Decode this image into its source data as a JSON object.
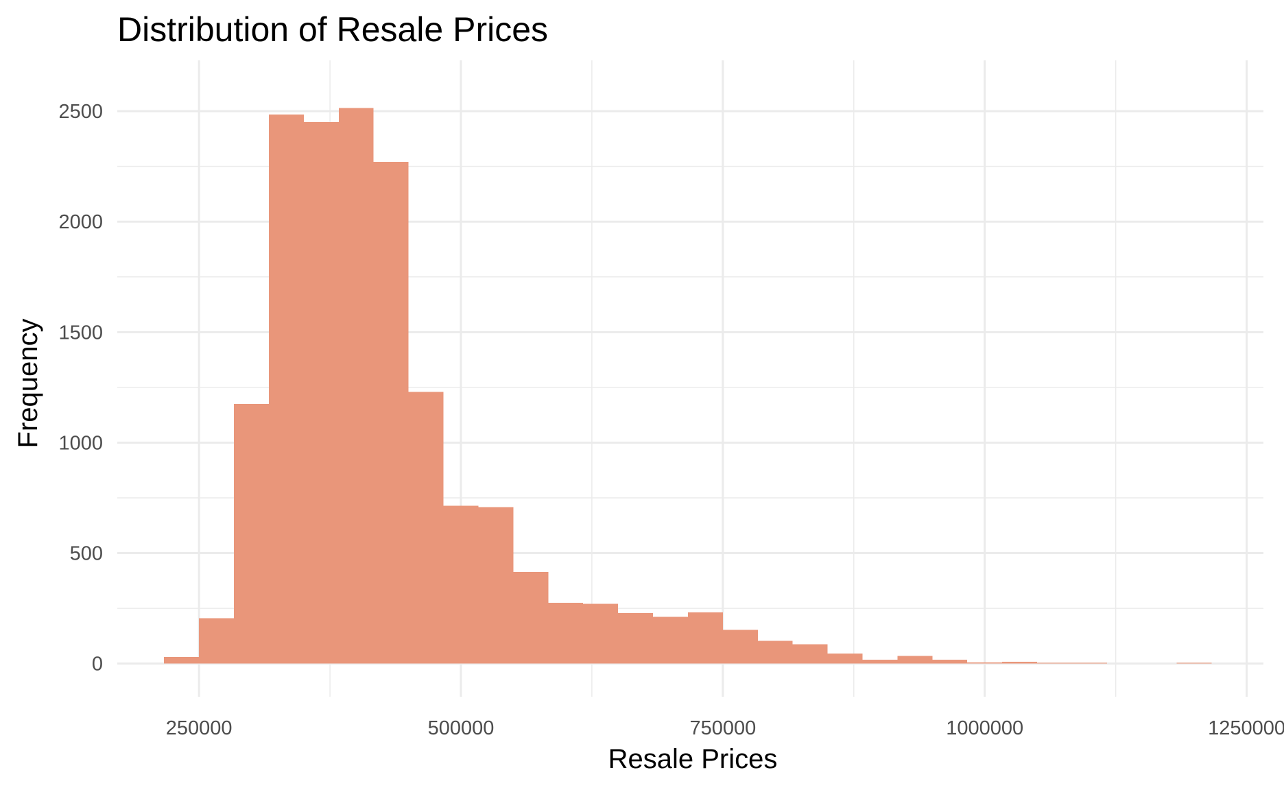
{
  "chart_data": {
    "type": "bar",
    "title": "Distribution of Resale Prices",
    "xlabel": "Resale Prices",
    "ylabel": "Frequency",
    "bar_color": "#E9967A",
    "grid": true,
    "xlim": [
      172000,
      1266000
    ],
    "ylim": [
      -150,
      2730
    ],
    "x_ticks": [
      250000,
      500000,
      750000,
      1000000,
      1250000
    ],
    "x_tick_labels": [
      "250000",
      "500000",
      "750000",
      "1000000",
      "1250000"
    ],
    "y_ticks": [
      0,
      500,
      1000,
      1500,
      2000,
      2500
    ],
    "y_tick_labels": [
      "0",
      "500",
      "1000",
      "1500",
      "2000",
      "2500"
    ],
    "bin_width": 33333,
    "bins": [
      {
        "start": 216667,
        "end": 250000,
        "count": 30
      },
      {
        "start": 250000,
        "end": 283333,
        "count": 205
      },
      {
        "start": 283333,
        "end": 316667,
        "count": 1175
      },
      {
        "start": 316667,
        "end": 350000,
        "count": 2485
      },
      {
        "start": 350000,
        "end": 383333,
        "count": 2450
      },
      {
        "start": 383333,
        "end": 416667,
        "count": 2515
      },
      {
        "start": 416667,
        "end": 450000,
        "count": 2270
      },
      {
        "start": 450000,
        "end": 483333,
        "count": 1230
      },
      {
        "start": 483333,
        "end": 516667,
        "count": 715
      },
      {
        "start": 516667,
        "end": 550000,
        "count": 708
      },
      {
        "start": 550000,
        "end": 583333,
        "count": 415
      },
      {
        "start": 583333,
        "end": 616667,
        "count": 275
      },
      {
        "start": 616667,
        "end": 650000,
        "count": 270
      },
      {
        "start": 650000,
        "end": 683333,
        "count": 228
      },
      {
        "start": 683333,
        "end": 716667,
        "count": 212
      },
      {
        "start": 716667,
        "end": 750000,
        "count": 232
      },
      {
        "start": 750000,
        "end": 783333,
        "count": 152
      },
      {
        "start": 783333,
        "end": 816667,
        "count": 103
      },
      {
        "start": 816667,
        "end": 850000,
        "count": 88
      },
      {
        "start": 850000,
        "end": 883333,
        "count": 45
      },
      {
        "start": 883333,
        "end": 916667,
        "count": 18
      },
      {
        "start": 916667,
        "end": 950000,
        "count": 35
      },
      {
        "start": 950000,
        "end": 983333,
        "count": 18
      },
      {
        "start": 983333,
        "end": 1016667,
        "count": 5
      },
      {
        "start": 1016667,
        "end": 1050000,
        "count": 8
      },
      {
        "start": 1050000,
        "end": 1083333,
        "count": 4
      },
      {
        "start": 1083333,
        "end": 1116667,
        "count": 3
      },
      {
        "start": 1116667,
        "end": 1150000,
        "count": 1
      },
      {
        "start": 1150000,
        "end": 1183333,
        "count": 0
      },
      {
        "start": 1183333,
        "end": 1216667,
        "count": 3
      }
    ]
  }
}
